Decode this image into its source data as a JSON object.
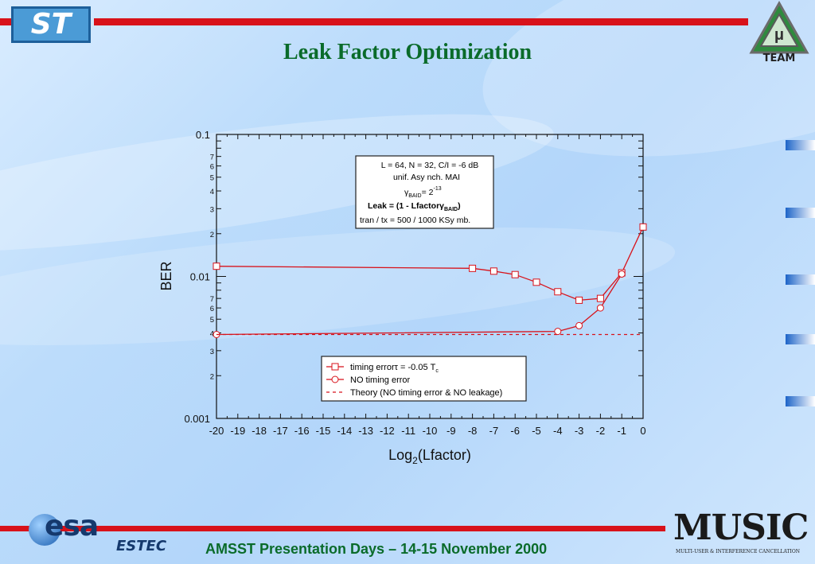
{
  "slide": {
    "title": "Leak Factor Optimization",
    "footer": "AMSST Presentation Days – 14-15 November 2000",
    "logos": {
      "st": "ST",
      "team": "TEAM",
      "esa": "esa",
      "estec": "ESTEC",
      "music": "MUSIC",
      "music_sub": "MULTI-USER & INTERFERENCE CANCELLATION"
    },
    "colors": {
      "title": "#0a6b2a",
      "accent_bar": "#d8121a",
      "series": "#d8121a"
    }
  },
  "chart_data": {
    "type": "line",
    "xlabel_main": "Log",
    "xlabel_sub": "2",
    "xlabel_tail": "(Lfactor)",
    "ylabel": "BER",
    "y_scale": "log",
    "xlim": [
      -20,
      0
    ],
    "ylim": [
      0.001,
      0.1
    ],
    "x_ticks": [
      -20,
      -19,
      -18,
      -17,
      -16,
      -15,
      -14,
      -13,
      -12,
      -11,
      -10,
      -9,
      -8,
      -7,
      -6,
      -5,
      -4,
      -3,
      -2,
      -1,
      0
    ],
    "y_major_ticks": [
      {
        "value": 0.1,
        "label": "0.1"
      },
      {
        "value": 0.01,
        "label": "0.01"
      },
      {
        "value": 0.001,
        "label": "0.001"
      }
    ],
    "y_minor_labels": [
      "2",
      "3",
      "4",
      "5",
      "6",
      "7"
    ],
    "annotation": {
      "line1": "L = 64,  N = 32,  C/I = -6 dB",
      "line2": "unif.  Asy nch.  MAI",
      "line3_gamma": "γ",
      "line3_sub": "BAID",
      "line3_eq": "= 2",
      "line3_sup": "-13",
      "line4_bold": "Leak = (1 - Lfactor",
      "line4_gamma": "γ",
      "line4_sub": "BAID",
      "line4_close": ")",
      "line5": "tran  /  tx  =  500  /  1000 KSy mb."
    },
    "legend_position": "bottom-center",
    "series": [
      {
        "name_main": "timing error",
        "name_tau": "τ",
        "name_eq": " = -0.05 T",
        "name_sub": "c",
        "marker": "square",
        "style": "solid",
        "x": [
          -20,
          -8,
          -7,
          -6,
          -5,
          -4,
          -3,
          -2,
          -1,
          0
        ],
        "y": [
          0.0118,
          0.0114,
          0.0109,
          0.0103,
          0.0091,
          0.0078,
          0.0068,
          0.007,
          0.0106,
          0.0223
        ]
      },
      {
        "name": "NO timing error",
        "marker": "circle",
        "style": "solid",
        "x": [
          -20,
          -4,
          -3,
          -2,
          -1
        ],
        "y": [
          0.0039,
          0.0041,
          0.0045,
          0.006,
          0.0104
        ]
      },
      {
        "name": "Theory  (NO timing error & NO leakage)",
        "marker": "none",
        "style": "dashed",
        "x": [
          -20,
          0
        ],
        "y": [
          0.0039,
          0.0039
        ]
      }
    ]
  }
}
